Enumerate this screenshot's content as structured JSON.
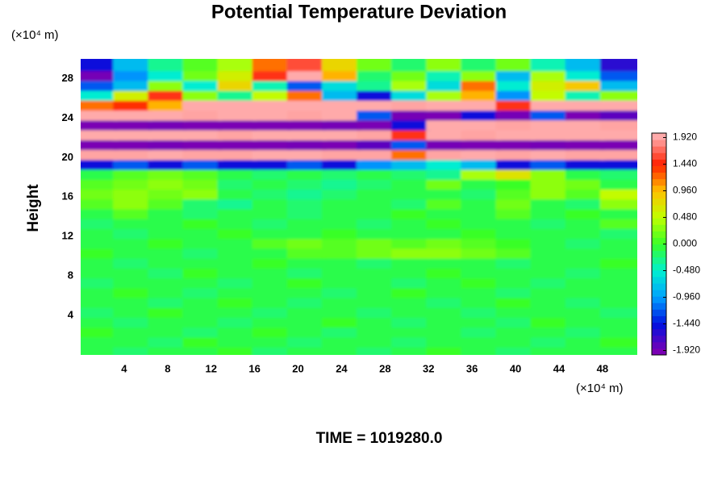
{
  "chart_data": {
    "type": "heatmap",
    "title": "Potential Temperature Deviation",
    "y_label": "Height",
    "y_unit": "(×10⁴ m)",
    "x_unit": "(×10⁴ m)",
    "annotation": "TIME = 1019280.0",
    "xlim": [
      0,
      51.2
    ],
    "ylim": [
      0,
      30
    ],
    "xticks": [
      4,
      8,
      12,
      16,
      20,
      24,
      28,
      32,
      36,
      40,
      44,
      48
    ],
    "yticks": [
      4,
      8,
      12,
      16,
      20,
      24,
      28
    ],
    "x": [
      1.6,
      4.8,
      8,
      11.2,
      14.4,
      17.6,
      20.8,
      24,
      27.2,
      30.4,
      33.6,
      36.8,
      40,
      43.2,
      46.4,
      49.6
    ],
    "y": [
      0.5,
      1.5,
      2.5,
      3.5,
      4.5,
      5.5,
      6.5,
      7.5,
      8.5,
      9.5,
      10.5,
      11.5,
      12.5,
      13.5,
      14.5,
      15.5,
      16.5,
      17.5,
      18.5,
      19.5,
      20.5,
      21.5,
      22.5,
      23.5,
      24.5,
      25.5,
      26.5,
      27.5,
      28.5,
      29.5
    ],
    "z": [
      [
        -0.1,
        -0.2,
        -0.1,
        -0.1,
        0.0,
        -0.2,
        -0.1,
        -0.1,
        -0.2,
        -0.1,
        0.0,
        -0.1,
        -0.2,
        -0.1,
        -0.1,
        -0.1
      ],
      [
        -0.1,
        -0.1,
        -0.2,
        0.0,
        -0.1,
        -0.1,
        -0.2,
        -0.1,
        -0.1,
        -0.2,
        -0.1,
        -0.1,
        -0.1,
        -0.2,
        -0.1,
        0.0
      ],
      [
        0.0,
        -0.1,
        -0.1,
        -0.2,
        -0.1,
        0.0,
        -0.1,
        -0.2,
        -0.1,
        -0.1,
        -0.1,
        -0.2,
        -0.1,
        -0.1,
        -0.2,
        -0.1
      ],
      [
        -0.1,
        -0.2,
        -0.1,
        -0.1,
        -0.2,
        -0.1,
        -0.1,
        0.0,
        -0.1,
        -0.2,
        -0.1,
        -0.1,
        -0.2,
        0.0,
        -0.1,
        -0.1
      ],
      [
        -0.2,
        -0.1,
        0.0,
        -0.1,
        -0.1,
        -0.2,
        -0.1,
        -0.1,
        -0.2,
        -0.1,
        -0.1,
        -0.2,
        -0.1,
        -0.1,
        -0.1,
        -0.2
      ],
      [
        -0.1,
        -0.1,
        -0.2,
        -0.1,
        0.0,
        -0.1,
        -0.2,
        -0.1,
        -0.1,
        -0.1,
        -0.2,
        -0.1,
        0.0,
        -0.1,
        -0.2,
        -0.1
      ],
      [
        -0.1,
        0.0,
        -0.1,
        -0.2,
        -0.1,
        -0.1,
        -0.1,
        -0.2,
        -0.1,
        0.0,
        -0.1,
        -0.1,
        -0.2,
        -0.1,
        -0.1,
        -0.1
      ],
      [
        -0.2,
        -0.1,
        -0.1,
        -0.1,
        -0.2,
        -0.1,
        0.0,
        -0.1,
        -0.1,
        -0.2,
        -0.1,
        0.0,
        -0.1,
        -0.2,
        -0.1,
        -0.1
      ],
      [
        -0.1,
        -0.1,
        -0.2,
        0.0,
        -0.1,
        -0.1,
        -0.2,
        -0.1,
        -0.1,
        -0.1,
        0.0,
        -0.1,
        -0.1,
        -0.1,
        -0.2,
        -0.1
      ],
      [
        -0.1,
        -0.2,
        -0.1,
        -0.1,
        -0.1,
        0.0,
        -0.1,
        -0.1,
        -0.2,
        -0.1,
        -0.1,
        -0.1,
        -0.2,
        -0.1,
        -0.1,
        0.0
      ],
      [
        0.0,
        -0.1,
        -0.1,
        -0.2,
        -0.1,
        -0.1,
        0.1,
        0.1,
        0.2,
        0.3,
        0.3,
        0.2,
        0.1,
        -0.1,
        -0.1,
        -0.1
      ],
      [
        -0.1,
        -0.1,
        0.0,
        -0.1,
        -0.1,
        0.1,
        0.2,
        0.1,
        0.2,
        0.1,
        0.2,
        0.1,
        0.0,
        -0.1,
        -0.2,
        -0.1
      ],
      [
        -0.1,
        -0.2,
        -0.1,
        -0.1,
        0.0,
        -0.1,
        -0.1,
        0.0,
        -0.1,
        -0.1,
        -0.1,
        0.0,
        -0.1,
        -0.1,
        -0.1,
        -0.2
      ],
      [
        -0.2,
        -0.1,
        -0.1,
        0.0,
        -0.1,
        -0.2,
        -0.1,
        -0.1,
        -0.2,
        -0.1,
        0.0,
        -0.1,
        -0.1,
        -0.2,
        -0.1,
        0.1
      ],
      [
        -0.1,
        0.1,
        -0.1,
        -0.2,
        -0.1,
        -0.1,
        -0.2,
        -0.1,
        -0.1,
        0.0,
        -0.1,
        -0.1,
        0.1,
        -0.1,
        0.0,
        -0.1
      ],
      [
        0.1,
        0.3,
        0.1,
        -0.2,
        -0.3,
        -0.1,
        -0.2,
        -0.1,
        -0.1,
        -0.2,
        0.1,
        -0.1,
        0.2,
        -0.1,
        -0.2,
        0.3
      ],
      [
        0.2,
        0.3,
        0.2,
        0.3,
        -0.1,
        -0.2,
        -0.3,
        -0.2,
        -0.1,
        -0.1,
        -0.1,
        -0.2,
        0.1,
        0.3,
        0.1,
        0.5
      ],
      [
        0.1,
        0.2,
        0.3,
        0.2,
        -0.2,
        -0.1,
        -0.2,
        -0.3,
        -0.2,
        -0.1,
        0.2,
        -0.1,
        0.0,
        0.3,
        0.2,
        -0.1
      ],
      [
        -0.1,
        0.1,
        0.2,
        0.1,
        -0.1,
        -0.2,
        -0.1,
        -0.2,
        -0.1,
        -0.2,
        -0.3,
        0.4,
        0.7,
        0.3,
        -0.1,
        -0.2
      ],
      [
        -1.5,
        -1.2,
        -1.5,
        -1.2,
        -1.5,
        -1.5,
        -1.2,
        -1.5,
        -1.0,
        -0.8,
        -0.5,
        -0.8,
        -1.5,
        -1.2,
        -1.5,
        -1.5
      ],
      [
        1.9,
        1.9,
        2.0,
        1.9,
        1.9,
        2.0,
        2.0,
        1.9,
        1.9,
        1.2,
        1.9,
        2.0,
        1.9,
        2.0,
        1.9,
        1.9
      ],
      [
        -2.0,
        -2.0,
        -1.9,
        -2.0,
        -2.0,
        -2.0,
        -1.9,
        -2.0,
        -1.8,
        -1.2,
        -1.9,
        -2.0,
        -2.0,
        -1.9,
        -2.0,
        -2.0
      ],
      [
        2.0,
        2.0,
        2.0,
        2.0,
        1.9,
        2.0,
        2.0,
        2.0,
        1.9,
        1.5,
        2.0,
        1.9,
        2.0,
        2.0,
        2.0,
        2.0
      ],
      [
        -2.0,
        -2.0,
        -1.9,
        -2.0,
        -2.0,
        -2.0,
        -2.0,
        -1.9,
        -2.0,
        -1.5,
        2.0,
        2.0,
        1.9,
        2.0,
        2.0,
        1.9
      ],
      [
        2.0,
        2.0,
        2.0,
        1.9,
        2.0,
        2.0,
        1.9,
        2.0,
        -1.2,
        -1.9,
        -2.0,
        -1.5,
        -1.9,
        -1.2,
        -2.0,
        -1.8
      ],
      [
        1.2,
        1.4,
        1.0,
        2.0,
        2.0,
        2.0,
        2.0,
        2.0,
        2.0,
        1.9,
        2.0,
        2.0,
        1.5,
        2.0,
        2.0,
        2.0
      ],
      [
        -0.5,
        0.6,
        1.5,
        0.3,
        -0.3,
        0.5,
        1.2,
        -0.8,
        -1.5,
        -0.6,
        0.4,
        1.0,
        -1.0,
        0.5,
        -0.4,
        0.3
      ],
      [
        -1.2,
        -0.8,
        0.3,
        -0.5,
        0.8,
        -0.4,
        -1.2,
        -0.6,
        -0.3,
        0.4,
        -0.6,
        1.2,
        -0.5,
        0.6,
        0.9,
        -0.8
      ],
      [
        -1.9,
        -1.0,
        -0.5,
        0.2,
        0.6,
        1.5,
        2.0,
        1.0,
        -0.2,
        0.2,
        -0.4,
        0.3,
        -0.8,
        0.4,
        -0.5,
        -1.2
      ],
      [
        -1.5,
        -0.8,
        -0.3,
        0.1,
        0.4,
        1.2,
        1.6,
        0.8,
        0.2,
        -0.2,
        0.3,
        -0.2,
        0.2,
        -0.4,
        -0.8,
        -1.6
      ]
    ],
    "clim": [
      -2,
      2
    ],
    "colormap": [
      {
        "value": -1.92,
        "color": "#7a00b4"
      },
      {
        "value": -1.44,
        "color": "#0010e0"
      },
      {
        "value": -0.96,
        "color": "#00a0ff"
      },
      {
        "value": -0.48,
        "color": "#00f0d0"
      },
      {
        "value": 0,
        "color": "#38ff28"
      },
      {
        "value": 0.48,
        "color": "#c0ff00"
      },
      {
        "value": 0.96,
        "color": "#ffc000"
      },
      {
        "value": 1.44,
        "color": "#ff2000"
      },
      {
        "value": 1.92,
        "color": "#ffaaaa"
      }
    ],
    "colorbar_ticks": [
      {
        "value": 1.92,
        "label": "1.920"
      },
      {
        "value": 1.44,
        "label": "1.440"
      },
      {
        "value": 0.96,
        "label": "0.960"
      },
      {
        "value": 0.48,
        "label": "0.480"
      },
      {
        "value": 0,
        "label": "0.000"
      },
      {
        "value": -0.48,
        "label": "-0.480"
      },
      {
        "value": -0.96,
        "label": "-0.960"
      },
      {
        "value": -1.44,
        "label": "-1.440"
      },
      {
        "value": -1.92,
        "label": "-1.920"
      }
    ]
  }
}
